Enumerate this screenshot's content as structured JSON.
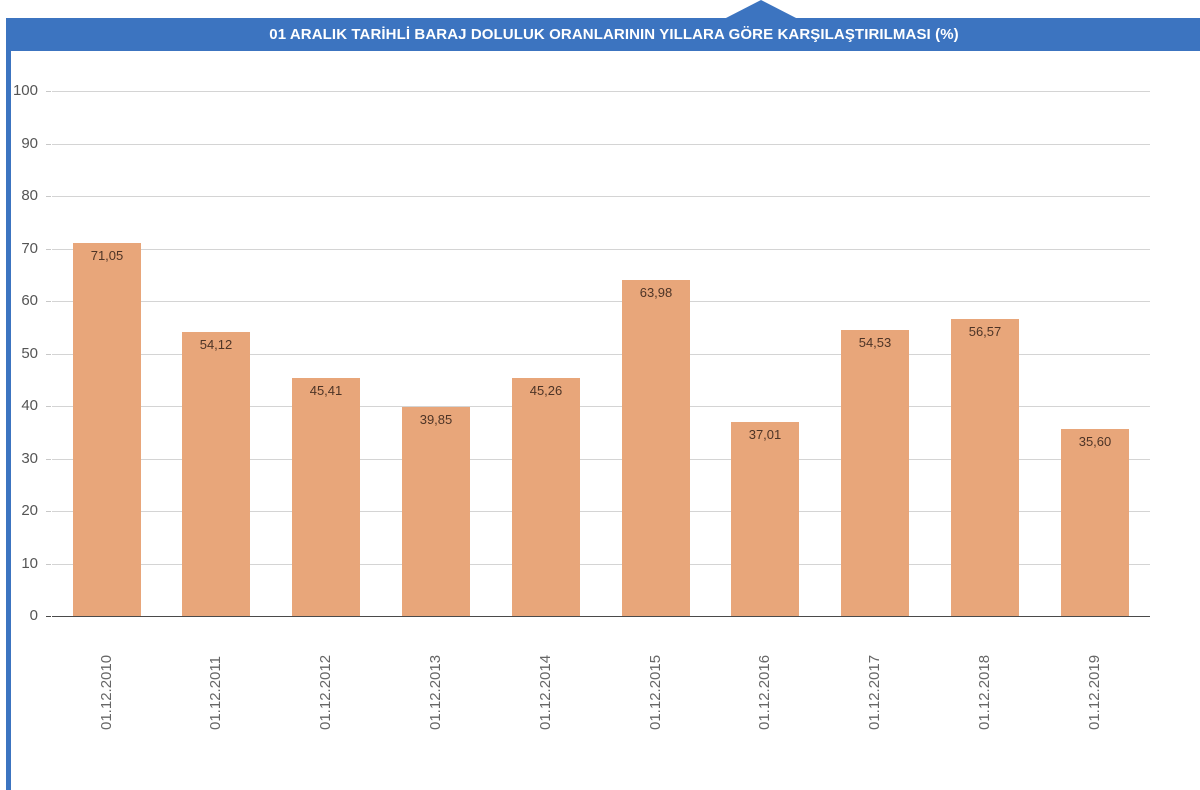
{
  "header": {
    "title": "01 ARALIK TARİHLİ BARAJ DOLULUK ORANLARININ YILLARA GÖRE KARŞILAŞTIRILMASI (%)"
  },
  "colors": {
    "header_bg": "#3c74c0",
    "bar": "#e8a67a",
    "gridline": "#d4d4d4",
    "axis": "#4a4a4a",
    "bar_label_text": "#4d3426"
  },
  "chart_data": {
    "type": "bar",
    "title": "01 ARALIK TARİHLİ BARAJ DOLULUK ORANLARININ YILLARA GÖRE KARŞILAŞTIRILMASI (%)",
    "xlabel": "",
    "ylabel": "",
    "ylim": [
      0,
      100
    ],
    "yticks": [
      0,
      10,
      20,
      30,
      40,
      50,
      60,
      70,
      80,
      90,
      100
    ],
    "grid": true,
    "legend": null,
    "categories": [
      "01.12.2010",
      "01.12.2011",
      "01.12.2012",
      "01.12.2013",
      "01.12.2014",
      "01.12.2015",
      "01.12.2016",
      "01.12.2017",
      "01.12.2018",
      "01.12.2019"
    ],
    "values": [
      71.05,
      54.12,
      45.41,
      39.85,
      45.26,
      63.98,
      37.01,
      54.53,
      56.57,
      35.6
    ],
    "value_labels": [
      "71,05",
      "54,12",
      "45,41",
      "39,85",
      "45,26",
      "63,98",
      "37,01",
      "54,53",
      "56,57",
      "35,60"
    ]
  }
}
